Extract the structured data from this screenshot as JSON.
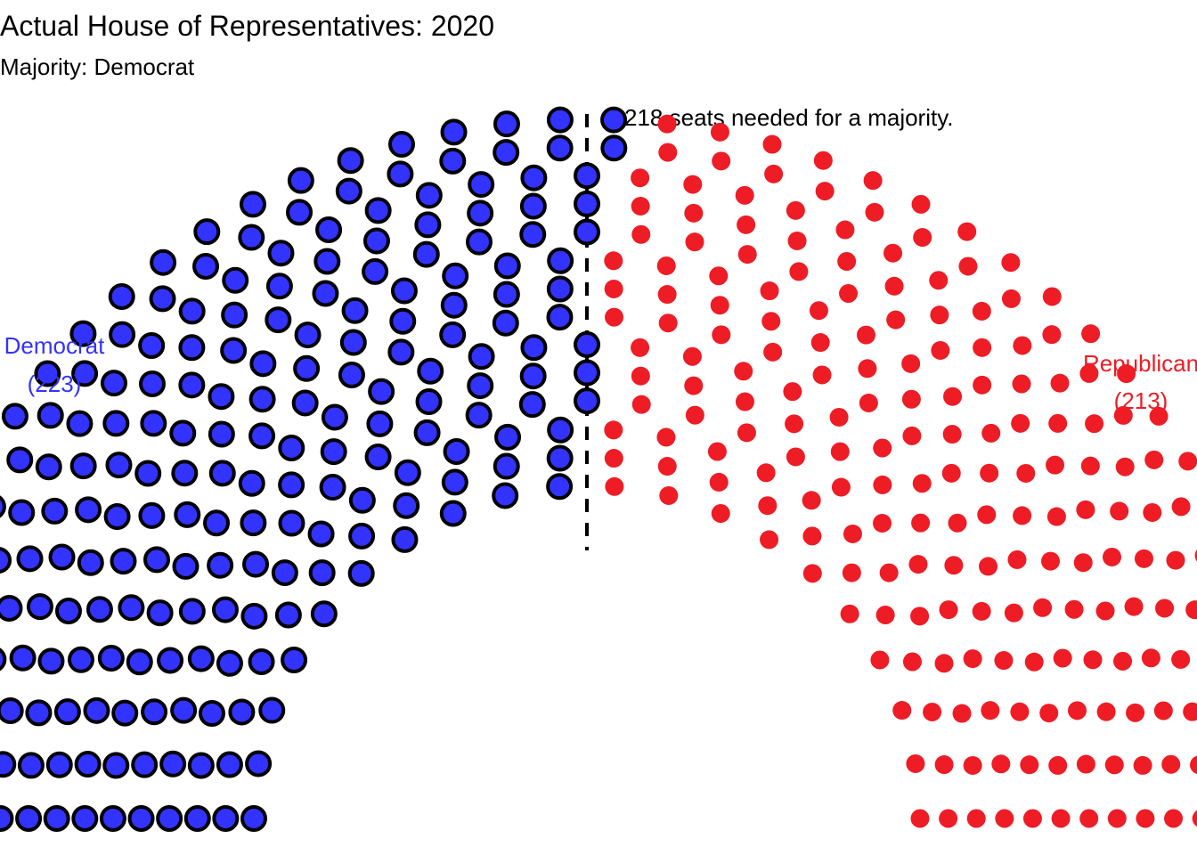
{
  "chart_data": {
    "type": "parliament",
    "title": "Actual House of Representatives: 2020",
    "subtitle": "Majority: Democrat",
    "total_seats": 436,
    "majority_seats": 218,
    "majority_label": "218 seats needed for a majority.",
    "rows": 14,
    "series": [
      {
        "name": "Democrat",
        "seats": 223,
        "seats_label": "(223)",
        "color": "#3333ff",
        "outline": "#000000",
        "highlighted": true
      },
      {
        "name": "Republican",
        "seats": 213,
        "seats_label": "(213)",
        "color": "#ee1c25",
        "outline": "none",
        "highlighted": false
      }
    ]
  }
}
